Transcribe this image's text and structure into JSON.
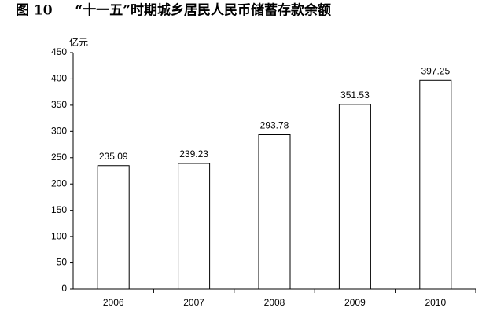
{
  "chart_data": {
    "type": "bar",
    "title": "图 10　  “十一五”时期城乡居民人民币储蓄存款余额",
    "y_label": "亿元",
    "categories": [
      "2006",
      "2007",
      "2008",
      "2009",
      "2010"
    ],
    "values": [
      235.09,
      239.23,
      293.78,
      351.53,
      397.25
    ],
    "color": "#ffffff",
    "edge_color": "#000000",
    "ylim": [
      0,
      450
    ],
    "yticks": [
      0,
      50,
      100,
      150,
      200,
      250,
      300,
      350,
      400,
      450
    ],
    "grid": false,
    "data_labels": true
  }
}
